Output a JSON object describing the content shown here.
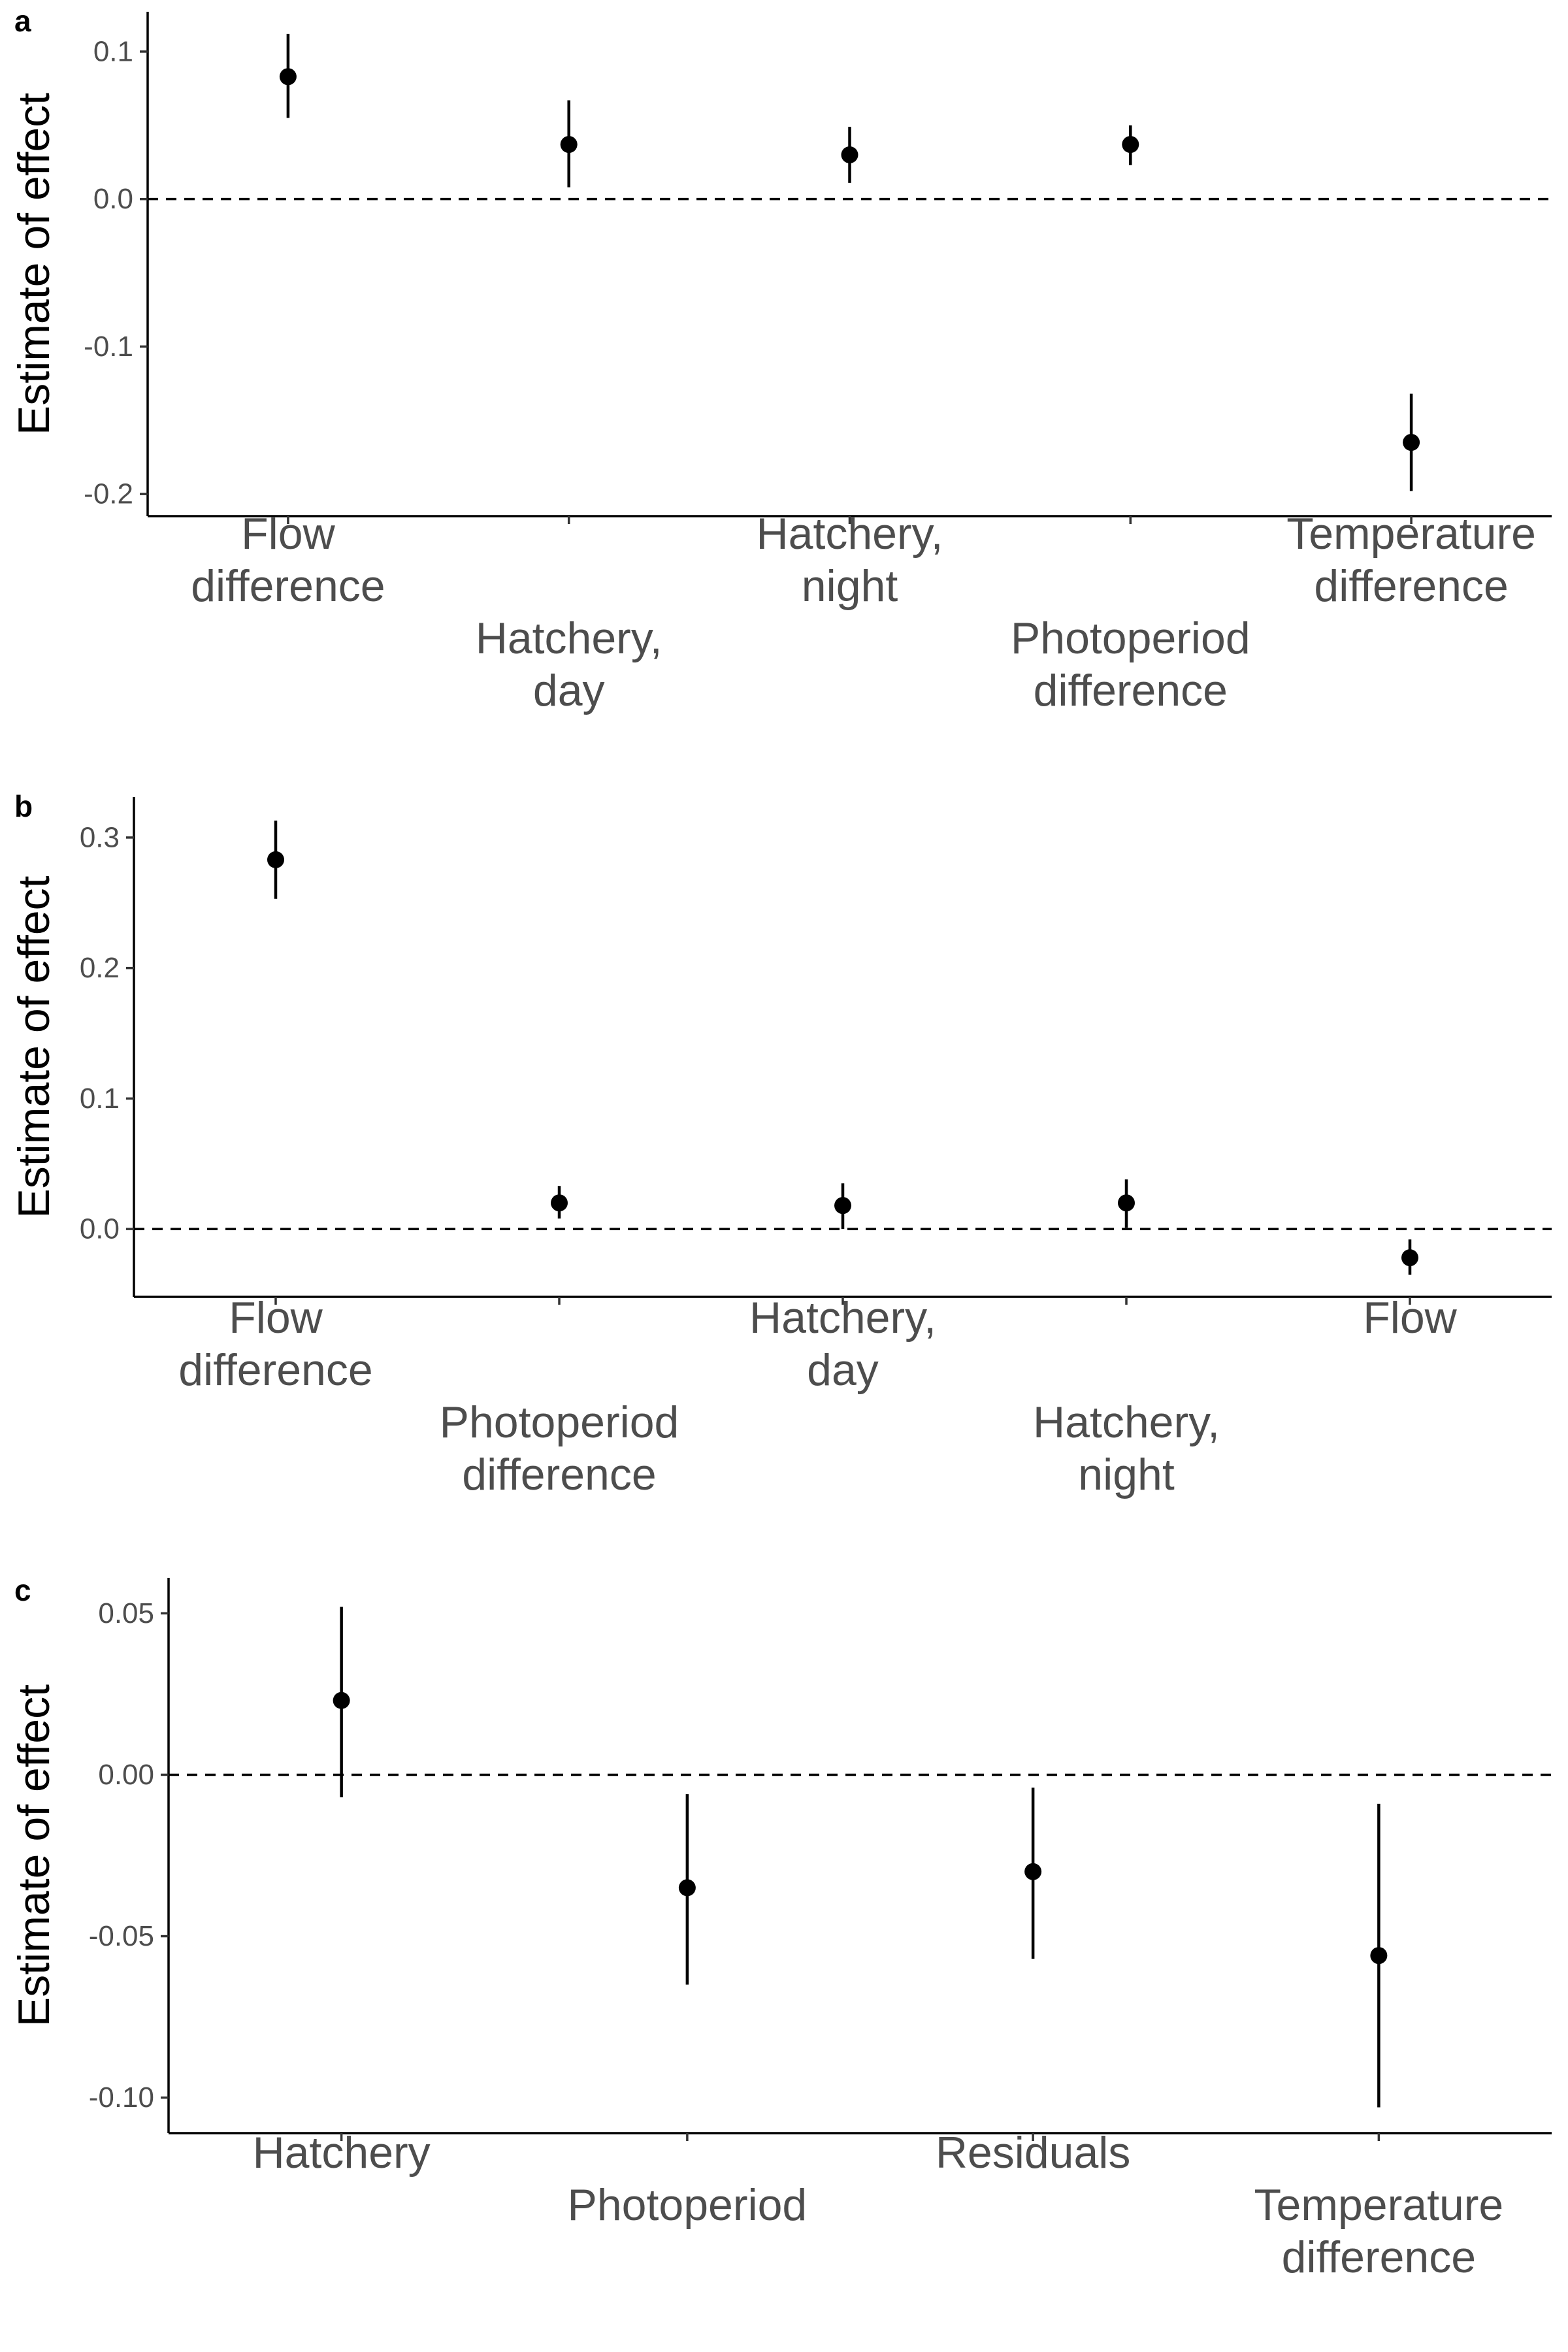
{
  "chart_data": [
    {
      "type": "scatter",
      "panel": "a",
      "ylabel": "Estimate of effect",
      "yticks": [
        0.1,
        0.0,
        -0.1,
        -0.2
      ],
      "ytick_labels": [
        "0.1",
        "0.0",
        "-0.1",
        "-0.2"
      ],
      "ylim": [
        -0.215,
        0.127
      ],
      "reference_line": 0,
      "categories": [
        [
          "Flow",
          "difference"
        ],
        [
          "Hatchery,",
          "day"
        ],
        [
          "Hatchery,",
          "night"
        ],
        [
          "Photoperiod",
          "difference"
        ],
        [
          "Temperature",
          "difference"
        ]
      ],
      "series": [
        {
          "estimate": [
            0.083,
            0.037,
            0.03,
            0.037,
            -0.165
          ],
          "lower": [
            0.055,
            0.008,
            0.011,
            0.023,
            -0.198
          ],
          "upper": [
            0.112,
            0.067,
            0.049,
            0.05,
            -0.132
          ]
        }
      ]
    },
    {
      "type": "scatter",
      "panel": "b",
      "ylabel": "Estimate of effect",
      "yticks": [
        0.3,
        0.2,
        0.1,
        0.0
      ],
      "ytick_labels": [
        "0.3",
        "0.2",
        "0.1",
        "0.0"
      ],
      "ylim": [
        -0.052,
        0.331
      ],
      "reference_line": 0,
      "categories": [
        [
          "Flow",
          "difference"
        ],
        [
          "Photoperiod",
          "difference"
        ],
        [
          "Hatchery,",
          "day"
        ],
        [
          "Hatchery,",
          "night"
        ],
        [
          "Flow"
        ]
      ],
      "series": [
        {
          "estimate": [
            0.283,
            0.02,
            0.018,
            0.02,
            -0.022
          ],
          "lower": [
            0.253,
            0.008,
            0.0,
            0.001,
            -0.035
          ],
          "upper": [
            0.313,
            0.033,
            0.035,
            0.038,
            -0.008
          ]
        }
      ]
    },
    {
      "type": "scatter",
      "panel": "c",
      "ylabel": "Estimate of effect",
      "yticks": [
        0.05,
        0.0,
        -0.05,
        -0.1
      ],
      "ytick_labels": [
        "0.05",
        "0.00",
        "-0.05",
        "-0.10"
      ],
      "ylim": [
        -0.111,
        0.061
      ],
      "reference_line": 0,
      "categories": [
        [
          "Hatchery"
        ],
        [
          "Photoperiod"
        ],
        [
          "Residuals"
        ],
        [
          "Temperature",
          "difference"
        ]
      ],
      "series": [
        {
          "estimate": [
            0.023,
            -0.035,
            -0.03,
            -0.056
          ],
          "lower": [
            -0.007,
            -0.065,
            -0.057,
            -0.103
          ],
          "upper": [
            0.052,
            -0.006,
            -0.004,
            -0.009
          ]
        }
      ]
    }
  ]
}
